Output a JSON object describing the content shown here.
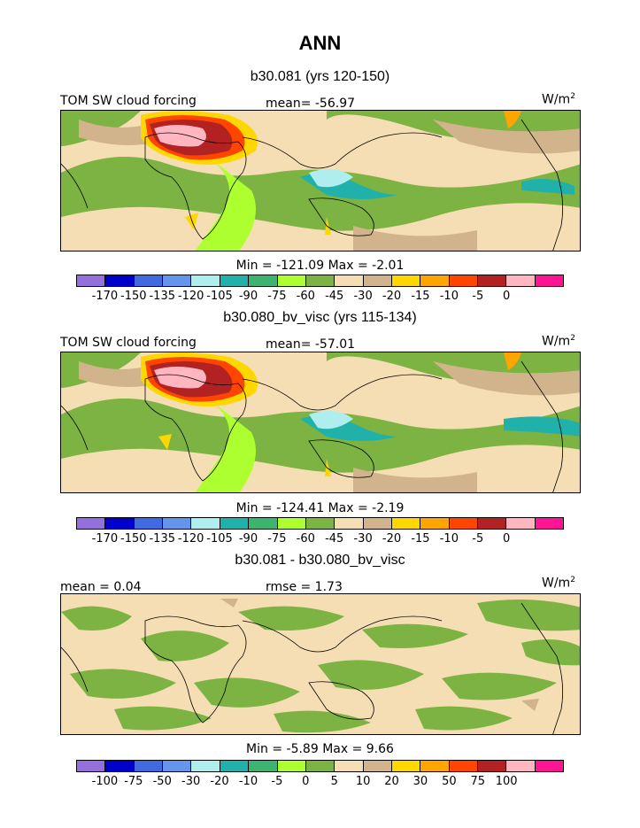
{
  "title": "ANN",
  "panels": [
    {
      "subtitle": "b30.081 (yrs 120-150)",
      "left_label": "TOM SW cloud forcing",
      "stat_label": "mean= -56.97",
      "units": "W/m",
      "units_exp": "2",
      "minmax": "Min = -121.09 Max = -2.01",
      "colorbar": "absolute"
    },
    {
      "subtitle": "b30.080_bv_visc (yrs 115-134)",
      "left_label": "TOM SW cloud forcing",
      "stat_label": "mean= -57.01",
      "units": "W/m",
      "units_exp": "2",
      "minmax": "Min = -124.41 Max = -2.19",
      "colorbar": "absolute"
    },
    {
      "subtitle": "b30.081 - b30.080_bv_visc",
      "left_label": "mean = 0.04",
      "stat_label": "rmse = 1.73",
      "units": "W/m",
      "units_exp": "2",
      "minmax": "Min = -5.89 Max = 9.66",
      "colorbar": "difference"
    }
  ],
  "colorbars": {
    "absolute": {
      "colors": [
        "#9370db",
        "#0000cd",
        "#4169e1",
        "#6495ed",
        "#afeeee",
        "#20b2aa",
        "#3cb371",
        "#adff2f",
        "#7cb342",
        "#f5deb3",
        "#d2b48c",
        "#ffd700",
        "#ffa500",
        "#ff4500",
        "#b22222",
        "#ffb6c1",
        "#ff1493"
      ],
      "ticks": [
        "-170",
        "-150",
        "-135",
        "-120",
        "-105",
        "-90",
        "-75",
        "-60",
        "-45",
        "-30",
        "-20",
        "-15",
        "-10",
        "-5",
        "0"
      ]
    },
    "difference": {
      "colors": [
        "#9370db",
        "#0000cd",
        "#4169e1",
        "#6495ed",
        "#afeeee",
        "#20b2aa",
        "#3cb371",
        "#adff2f",
        "#7cb342",
        "#f5deb3",
        "#d2b48c",
        "#ffd700",
        "#ffa500",
        "#ff4500",
        "#b22222",
        "#ffb6c1",
        "#ff1493"
      ],
      "ticks": [
        "-100",
        "-75",
        "-50",
        "-30",
        "-20",
        "-10",
        "-5",
        "0",
        "5",
        "10",
        "20",
        "30",
        "50",
        "75",
        "100"
      ]
    }
  },
  "map_colors": {
    "tan": "#f5deb3",
    "light_brown": "#d2b48c",
    "green": "#7cb342",
    "light_green": "#adff2f",
    "teal": "#20b2aa",
    "light_blue": "#afeeee",
    "yellow": "#ffd700",
    "orange": "#ffa500",
    "red_orange": "#ff4500",
    "dark_red": "#b22222",
    "pink": "#ffb6c1"
  }
}
